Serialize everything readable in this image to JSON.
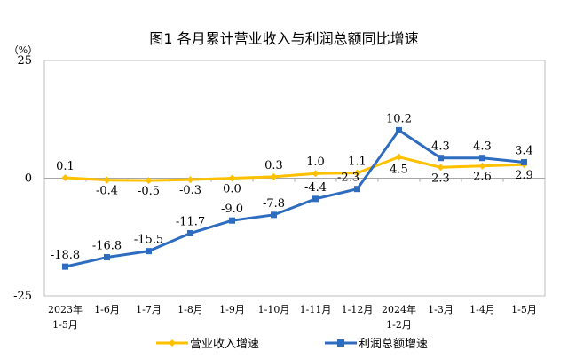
{
  "chart_data": {
    "type": "line",
    "title": "图1  各月累计营业收入与利润总额同比增速",
    "ylabel": "（%）",
    "ylim": [
      -25,
      25
    ],
    "yticks": [
      "25",
      "0",
      "-25"
    ],
    "categories": [
      [
        "2023年",
        "1-5月"
      ],
      [
        "1-6月"
      ],
      [
        "1-7月"
      ],
      [
        "1-8月"
      ],
      [
        "1-9月"
      ],
      [
        "1-10月"
      ],
      [
        "1-11月"
      ],
      [
        "1-12月"
      ],
      [
        "2024年",
        "1-2月"
      ],
      [
        "1-3月"
      ],
      [
        "1-4月"
      ],
      [
        "1-5月"
      ]
    ],
    "grid": false,
    "legend": "bottom",
    "series": [
      {
        "name": "营业收入增速",
        "color": "#FFC000",
        "marker": "diamond",
        "values": [
          0.1,
          -0.4,
          -0.5,
          -0.3,
          0.0,
          0.3,
          1.0,
          1.1,
          4.5,
          2.3,
          2.6,
          2.9
        ],
        "labels": [
          "0.1",
          "-0.4",
          "-0.5",
          "-0.3",
          "0.0",
          "0.3",
          "1.0",
          "1.1",
          "4.5",
          "2.3",
          "2.6",
          "2.9"
        ]
      },
      {
        "name": "利润总额增速",
        "color": "#2E6CC0",
        "marker": "square",
        "values": [
          -18.8,
          -16.8,
          -15.5,
          -11.7,
          -9.0,
          -7.8,
          -4.4,
          -2.3,
          10.2,
          4.3,
          4.3,
          3.4
        ],
        "labels": [
          "-18.8",
          "-16.8",
          "-15.5",
          "-11.7",
          "-9.0",
          "-7.8",
          "-4.4",
          "-2.3",
          "10.2",
          "4.3",
          "4.3",
          "3.4"
        ]
      }
    ]
  }
}
